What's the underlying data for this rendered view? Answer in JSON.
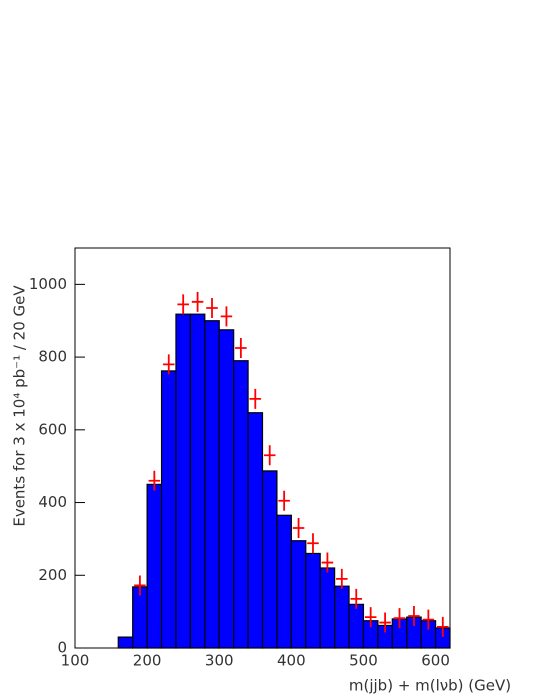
{
  "chart_data": {
    "type": "histogram",
    "xlabel": "m(jjb) + m(lνb) (GeV)",
    "ylabel": "Events for 3 x 10⁴ pb⁻¹ / 20 GeV",
    "bins": [
      100,
      120,
      140,
      160,
      180,
      200,
      220,
      240,
      260,
      280,
      300,
      320,
      340,
      360,
      380,
      400,
      420,
      440,
      460,
      480,
      500,
      520,
      540,
      560,
      580,
      600,
      620
    ],
    "values": [
      0,
      0,
      0,
      30,
      168,
      450,
      762,
      918,
      918,
      900,
      875,
      790,
      647,
      487,
      365,
      295,
      260,
      220,
      170,
      120,
      75,
      62,
      80,
      85,
      75,
      55
    ],
    "color": "#0000ff",
    "markers": {
      "color": "#ff0000",
      "x": [
        190,
        210,
        230,
        250,
        270,
        290,
        310,
        330,
        350,
        370,
        390,
        410,
        430,
        450,
        470,
        490,
        510,
        530,
        550,
        570,
        590,
        610
      ],
      "values": [
        172,
        460,
        780,
        945,
        952,
        935,
        912,
        825,
        685,
        530,
        405,
        330,
        288,
        235,
        190,
        135,
        85,
        70,
        82,
        88,
        78,
        58
      ]
    },
    "xlim": [
      100,
      620
    ],
    "ylim": [
      0,
      1100
    ],
    "xticks": [
      100,
      200,
      300,
      400,
      500,
      600
    ],
    "yticks": [
      0,
      200,
      400,
      600,
      800,
      1000
    ]
  }
}
